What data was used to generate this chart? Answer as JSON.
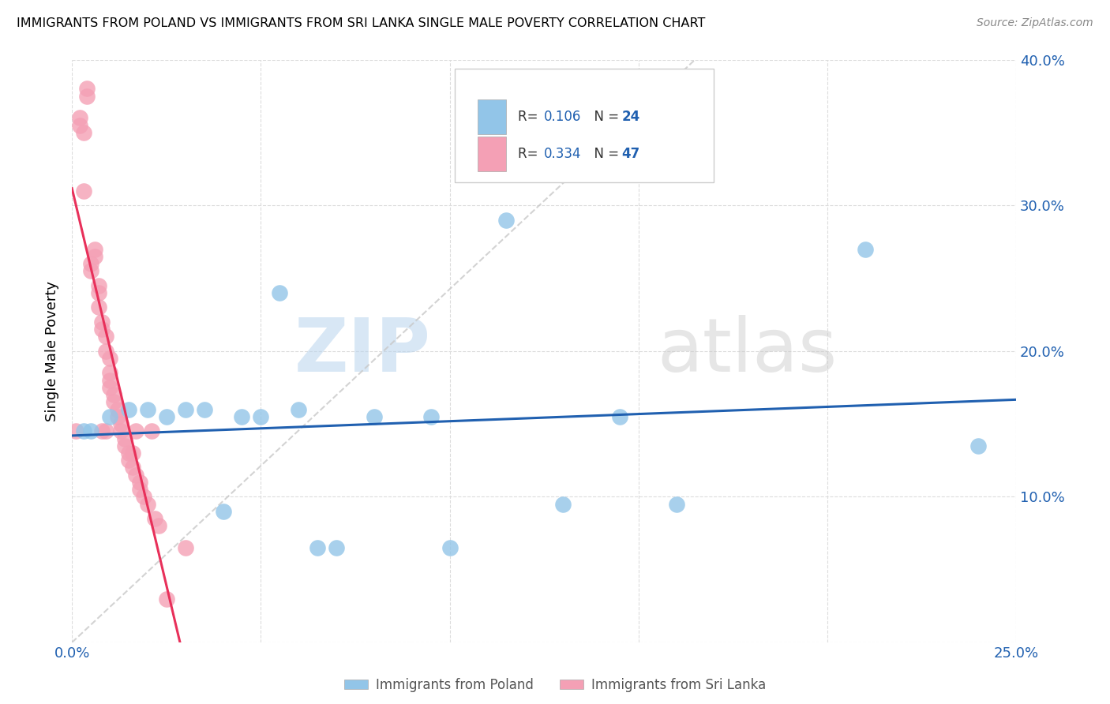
{
  "title": "IMMIGRANTS FROM POLAND VS IMMIGRANTS FROM SRI LANKA SINGLE MALE POVERTY CORRELATION CHART",
  "source": "Source: ZipAtlas.com",
  "ylabel": "Single Male Poverty",
  "xlim": [
    0.0,
    0.25
  ],
  "ylim": [
    0.0,
    0.4
  ],
  "poland_color": "#92C5E8",
  "sri_lanka_color": "#F4A0B5",
  "trend_poland_color": "#2060B0",
  "trend_sri_lanka_color": "#E8305A",
  "diagonal_color": "#C8C8C8",
  "legend_R_poland": "0.106",
  "legend_N_poland": "24",
  "legend_R_sri_lanka": "0.334",
  "legend_N_sri_lanka": "47",
  "watermark_zip": "ZIP",
  "watermark_atlas": "atlas",
  "poland_x": [
    0.003,
    0.005,
    0.01,
    0.015,
    0.02,
    0.025,
    0.03,
    0.035,
    0.04,
    0.045,
    0.05,
    0.055,
    0.06,
    0.065,
    0.07,
    0.08,
    0.095,
    0.1,
    0.115,
    0.13,
    0.145,
    0.16,
    0.21,
    0.24
  ],
  "poland_y": [
    0.145,
    0.145,
    0.155,
    0.16,
    0.16,
    0.155,
    0.16,
    0.16,
    0.09,
    0.155,
    0.155,
    0.24,
    0.16,
    0.065,
    0.065,
    0.155,
    0.155,
    0.065,
    0.29,
    0.095,
    0.155,
    0.095,
    0.27,
    0.135
  ],
  "sri_lanka_x": [
    0.001,
    0.002,
    0.002,
    0.003,
    0.003,
    0.004,
    0.004,
    0.005,
    0.005,
    0.006,
    0.006,
    0.007,
    0.007,
    0.007,
    0.008,
    0.008,
    0.008,
    0.009,
    0.009,
    0.009,
    0.01,
    0.01,
    0.01,
    0.01,
    0.011,
    0.011,
    0.012,
    0.012,
    0.013,
    0.013,
    0.014,
    0.014,
    0.015,
    0.015,
    0.016,
    0.016,
    0.017,
    0.017,
    0.018,
    0.018,
    0.019,
    0.02,
    0.021,
    0.022,
    0.023,
    0.025,
    0.03
  ],
  "sri_lanka_y": [
    0.145,
    0.36,
    0.355,
    0.35,
    0.31,
    0.38,
    0.375,
    0.26,
    0.255,
    0.27,
    0.265,
    0.245,
    0.24,
    0.23,
    0.22,
    0.215,
    0.145,
    0.21,
    0.2,
    0.145,
    0.195,
    0.185,
    0.18,
    0.175,
    0.17,
    0.165,
    0.16,
    0.155,
    0.15,
    0.145,
    0.14,
    0.135,
    0.13,
    0.125,
    0.13,
    0.12,
    0.115,
    0.145,
    0.11,
    0.105,
    0.1,
    0.095,
    0.145,
    0.085,
    0.08,
    0.03,
    0.065
  ]
}
